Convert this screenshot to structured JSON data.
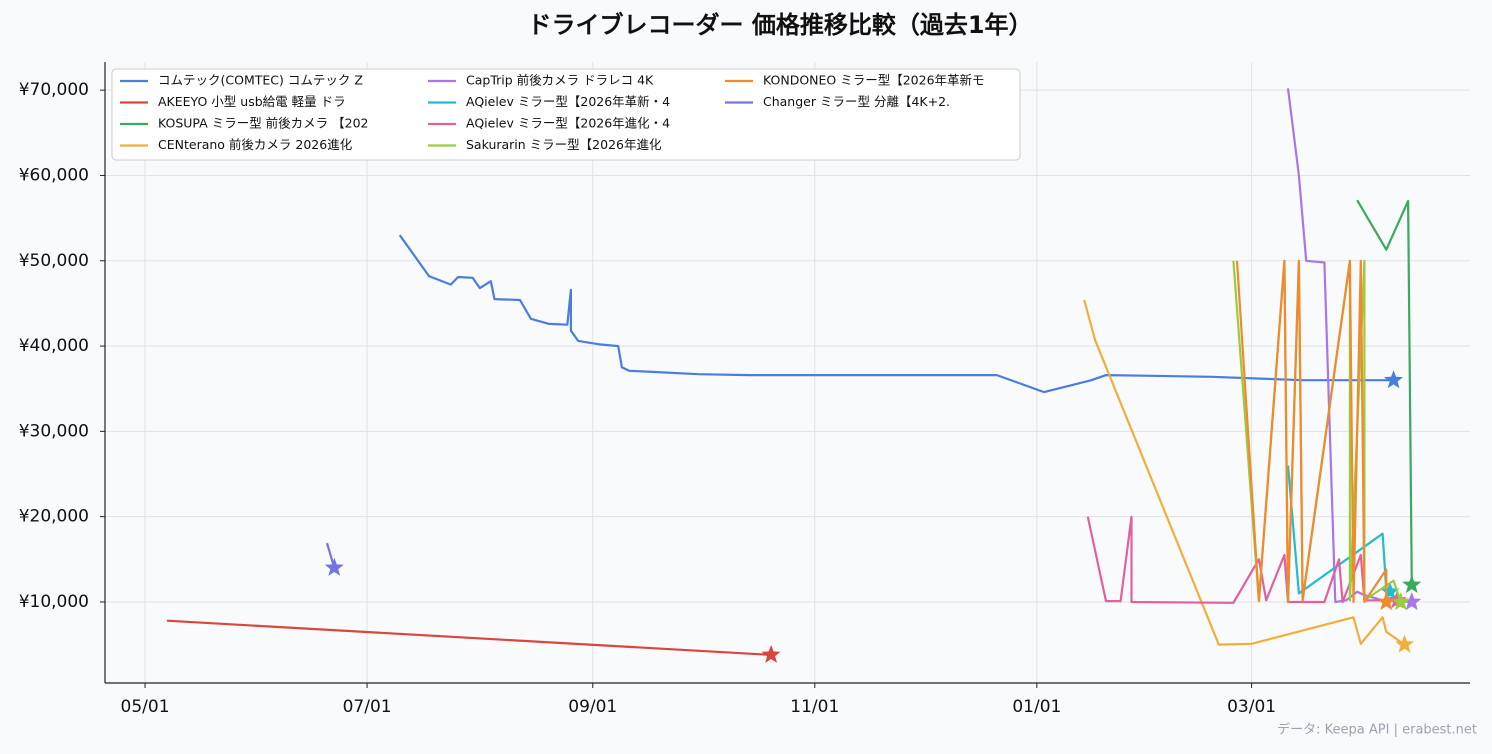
{
  "chart_data": {
    "type": "line",
    "title": "ドライブレコーダー 価格推移比較（過去1年）",
    "footer": "データ: Keepa API | erabest.net",
    "xlim": [
      "04/20",
      "04/30"
    ],
    "xticks": [
      "05/01",
      "07/01",
      "09/01",
      "11/01",
      "01/01",
      "03/01"
    ],
    "ylim": [
      500,
      73300
    ],
    "yticks": [
      {
        "value": 10000,
        "label": "¥10,000"
      },
      {
        "value": 20000,
        "label": "¥20,000"
      },
      {
        "value": 30000,
        "label": "¥30,000"
      },
      {
        "value": 40000,
        "label": "¥40,000"
      },
      {
        "value": 50000,
        "label": "¥50,000"
      },
      {
        "value": 60000,
        "label": "¥60,000"
      },
      {
        "value": 70000,
        "label": "¥70,000"
      }
    ],
    "grid": true,
    "legend": "upper left",
    "series": [
      {
        "name": "コムテック(COMTEC) コムテック  Z",
        "color": "#4a7de0",
        "x": [
          "07/10",
          "07/18",
          "07/24",
          "07/26",
          "07/30",
          "08/01",
          "08/04",
          "08/05",
          "08/12",
          "08/15",
          "08/20",
          "08/25",
          "08/26",
          "08/26",
          "08/28",
          "09/03",
          "09/08",
          "09/09",
          "09/11",
          "09/16",
          "09/30",
          "10/14",
          "12/21",
          "01/03",
          "01/16",
          "01/20",
          "02/18",
          "03/15",
          "04/09"
        ],
        "values": [
          53000,
          48200,
          47200,
          48100,
          48000,
          46800,
          47600,
          45500,
          45400,
          43200,
          42600,
          42500,
          46600,
          41800,
          40600,
          40200,
          40000,
          37500,
          37100,
          37000,
          36700,
          36600,
          36600,
          34600,
          36000,
          36600,
          36400,
          36000,
          36000
        ]
      },
      {
        "name": "AKEEYO  小型 usb給電 軽量 ドラ",
        "color": "#d9463e",
        "x": [
          "05/07",
          "10/20"
        ],
        "values": [
          7800,
          3800
        ]
      },
      {
        "name": "KOSUPA ミラー型 前後カメラ 【202",
        "color": "#3aaa5c",
        "x": [
          "03/30",
          "04/07",
          "04/13",
          "04/14"
        ],
        "values": [
          57100,
          51300,
          57000,
          12000
        ]
      },
      {
        "name": "CENterano 前後カメラ 2026進化",
        "color": "#f2ae38",
        "x": [
          "01/14",
          "01/17",
          "02/20",
          "03/01",
          "03/29",
          "03/31",
          "04/06",
          "04/07",
          "04/12"
        ],
        "values": [
          45400,
          40700,
          5000,
          5100,
          8200,
          5100,
          8200,
          6500,
          5000
        ]
      },
      {
        "name": "CapTrip 前後カメラ ドラレコ 4K",
        "color": "#a676ea",
        "x": [
          "03/11",
          "03/14",
          "03/16",
          "03/21",
          "03/24",
          "03/27",
          "03/30",
          "04/01",
          "04/06",
          "04/14"
        ],
        "values": [
          70200,
          60000,
          50000,
          49800,
          10000,
          10200,
          11200,
          10800,
          10200,
          10000
        ]
      },
      {
        "name": "AQielev ミラー型【2026年革新・4",
        "color": "#22bcd0",
        "x": [
          "03/11",
          "03/14",
          "04/06",
          "04/07",
          "04/08"
        ],
        "values": [
          26000,
          11000,
          18000,
          11400,
          11200
        ]
      },
      {
        "name": "AQielev ミラー型【2026年進化・4",
        "color": "#e3609e",
        "x": [
          "01/15",
          "01/20",
          "01/24",
          "01/27",
          "01/27",
          "02/24",
          "03/03",
          "03/05",
          "03/10",
          "03/11",
          "03/21",
          "03/25",
          "03/26",
          "03/31",
          "04/01",
          "04/10"
        ],
        "values": [
          20000,
          10100,
          10100,
          20000,
          10000,
          9900,
          15000,
          10200,
          15500,
          10000,
          10000,
          15000,
          10000,
          15500,
          10200,
          10200
        ]
      },
      {
        "name": "Sakurarin ミラー型【2026年進化",
        "color": "#9ccc3c",
        "x": [
          "02/24",
          "03/03",
          "03/10",
          "03/11",
          "03/14",
          "03/15",
          "03/28",
          "03/28",
          "04/01",
          "04/01",
          "04/09",
          "04/11"
        ],
        "values": [
          50000,
          10100,
          50000,
          10000,
          50000,
          10200,
          50000,
          10200,
          50000,
          10200,
          12500,
          10000
        ]
      },
      {
        "name": "KONDONEO ミラー型【2026年革新モ",
        "color": "#ef8a2e",
        "x": [
          "02/25",
          "03/03",
          "03/10",
          "03/11",
          "03/14",
          "03/15",
          "03/28",
          "03/29",
          "03/31",
          "04/01",
          "04/07",
          "04/07"
        ],
        "values": [
          50000,
          10200,
          50000,
          10000,
          50000,
          10200,
          50000,
          10000,
          50000,
          10000,
          13800,
          10000
        ]
      },
      {
        "name": "Changer  ミラー型 分離【4K+2.",
        "color": "#7474e4",
        "x": [
          "06/20",
          "06/22"
        ],
        "values": [
          16900,
          14000
        ]
      }
    ]
  }
}
